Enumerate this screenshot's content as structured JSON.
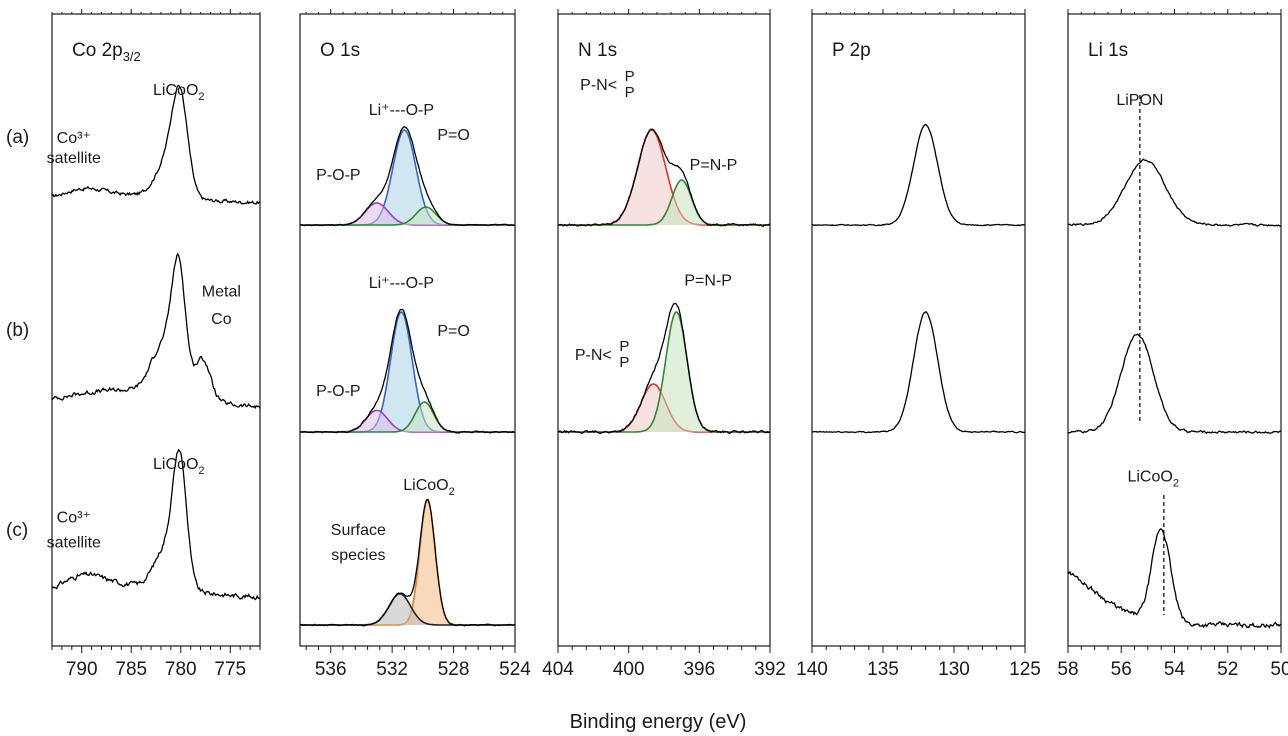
{
  "figure": {
    "xlabel": "Binding energy (eV)",
    "row_labels": [
      "(a)",
      "(b)",
      "(c)"
    ]
  },
  "colors": {
    "frame": "#1a1a1a",
    "envelope": "#000000",
    "red_line": "#e03030",
    "red_fill": "#f0c8c8",
    "green_line": "#2e8b2e",
    "green_fill": "#c8e3c0",
    "blue_line": "#3366cc",
    "blue_fill": "#a9d3e8",
    "purple_line": "#a040c0",
    "purple_fill": "#dcc0e8",
    "orange_line": "#e08020",
    "orange_fill": "#f3b985",
    "gray_line": "#222222",
    "gray_fill": "#b8b8b8"
  },
  "chart_data": [
    {
      "id": "co2p",
      "type": "line",
      "title_main": "Co 2p",
      "title_sub": "3/2",
      "xlim": [
        793,
        772
      ],
      "ticks": [
        790,
        785,
        780,
        775
      ],
      "tick_labels": [
        "790",
        "785",
        "780",
        "775"
      ],
      "rows": [
        {
          "label": "(a)",
          "baseline": 0.22,
          "noise": 0.015,
          "series": [
            {
              "name": "envelope",
              "center": 780.1,
              "height": 1.0,
              "width": 0.8
            },
            {
              "name": "shoulder",
              "center": 781.6,
              "height": 0.3,
              "width": 1.1
            },
            {
              "name": "satellite",
              "center": 789.8,
              "height": 0.08,
              "width": 2.0
            },
            {
              "name": "bg",
              "center": 786,
              "height": 0.08,
              "width": 6.0
            }
          ]
        },
        {
          "label": "(b)",
          "baseline": 0.2,
          "noise": 0.015,
          "series": [
            {
              "name": "envelope",
              "center": 780.2,
              "height": 1.0,
              "width": 0.7
            },
            {
              "name": "shoulder",
              "center": 781.8,
              "height": 0.4,
              "width": 1.2
            },
            {
              "name": "metal",
              "center": 777.8,
              "height": 0.35,
              "width": 0.8
            },
            {
              "name": "bg",
              "center": 786,
              "height": 0.15,
              "width": 6.0
            }
          ]
        },
        {
          "label": "(c)",
          "baseline": 0.22,
          "noise": 0.015,
          "series": [
            {
              "name": "envelope",
              "center": 780.1,
              "height": 1.0,
              "width": 0.7
            },
            {
              "name": "shoulder",
              "center": 781.6,
              "height": 0.3,
              "width": 1.1
            },
            {
              "name": "satellite",
              "center": 789.8,
              "height": 0.1,
              "width": 2.0
            },
            {
              "name": "bg",
              "center": 786,
              "height": 0.1,
              "width": 6.0
            }
          ]
        }
      ],
      "annotations": [
        {
          "row": 0,
          "text": "Co³⁺",
          "x": 790.8,
          "y": 0.82
        },
        {
          "row": 0,
          "text": "satellite",
          "x": 790.8,
          "y": 0.62
        },
        {
          "row": 0,
          "text": "LiCoO",
          "sub": "2",
          "x": 780.2,
          "y": 1.3
        },
        {
          "row": 1,
          "text": "Metal",
          "x": 775.9,
          "y": 1.13
        },
        {
          "row": 1,
          "text": "Co",
          "x": 775.9,
          "y": 0.9
        },
        {
          "row": 2,
          "text": "Co³⁺",
          "x": 790.8,
          "y": 0.82
        },
        {
          "row": 2,
          "text": "satellite",
          "x": 790.8,
          "y": 0.62
        },
        {
          "row": 2,
          "text": "LiCoO",
          "sub": "2",
          "x": 780.2,
          "y": 1.25
        }
      ]
    },
    {
      "id": "o1s",
      "type": "line",
      "title_main": "O 1s",
      "title_sub": "",
      "xlim": [
        538,
        524
      ],
      "ticks": [
        536,
        532,
        528,
        524
      ],
      "tick_labels": [
        "536",
        "532",
        "528",
        "524"
      ],
      "rows": [
        {
          "label": "(a)",
          "baseline": 0.0,
          "noise": 0.005,
          "series": [
            {
              "name": "Li+---O-P",
              "center": 531.2,
              "height": 0.95,
              "width": 0.75,
              "color": "blue"
            },
            {
              "name": "P-O-P",
              "center": 533.0,
              "height": 0.22,
              "width": 0.75,
              "color": "purple"
            },
            {
              "name": "P=O",
              "center": 529.8,
              "height": 0.18,
              "width": 0.65,
              "color": "green"
            }
          ]
        },
        {
          "label": "(b)",
          "baseline": 0.0,
          "noise": 0.005,
          "series": [
            {
              "name": "Li+---O-P",
              "center": 531.4,
              "height": 1.0,
              "width": 0.7,
              "color": "blue"
            },
            {
              "name": "P-O-P",
              "center": 533.0,
              "height": 0.18,
              "width": 0.7,
              "color": "purple"
            },
            {
              "name": "P=O",
              "center": 529.9,
              "height": 0.25,
              "width": 0.6,
              "color": "green"
            }
          ]
        },
        {
          "label": "(c)",
          "baseline": 0.0,
          "noise": 0.004,
          "series": [
            {
              "name": "LiCoO2",
              "center": 529.7,
              "height": 1.0,
              "width": 0.5,
              "color": "orange"
            },
            {
              "name": "Surface species",
              "center": 531.5,
              "height": 0.25,
              "width": 0.7,
              "color": "gray"
            }
          ]
        }
      ],
      "annotations": [
        {
          "row": 0,
          "text": "Li⁺---O-P",
          "x": 531.4,
          "y": 1.1
        },
        {
          "row": 0,
          "text": "P-O-P",
          "x": 535.5,
          "y": 0.45
        },
        {
          "row": 0,
          "text": "P=O",
          "x": 528.0,
          "y": 0.85
        },
        {
          "row": 1,
          "text": "Li⁺---O-P",
          "x": 531.4,
          "y": 1.2
        },
        {
          "row": 1,
          "text": "P-O-P",
          "x": 535.5,
          "y": 0.3
        },
        {
          "row": 1,
          "text": "P=O",
          "x": 528.0,
          "y": 0.8
        },
        {
          "row": 2,
          "text": "Surface",
          "x": 534.2,
          "y": 0.72
        },
        {
          "row": 2,
          "text": "species",
          "x": 534.2,
          "y": 0.52
        },
        {
          "row": 2,
          "text": "LiCoO",
          "sub": "2",
          "x": 529.6,
          "y": 1.08
        }
      ]
    },
    {
      "id": "n1s",
      "type": "line",
      "title_main": "N 1s",
      "title_sub": "",
      "xlim": [
        404,
        392
      ],
      "ticks": [
        404,
        400,
        396,
        392
      ],
      "tick_labels": [
        "404",
        "400",
        "396",
        "392"
      ],
      "rows": [
        {
          "label": "(a)",
          "baseline": 0.0,
          "noise": 0.008,
          "series": [
            {
              "name": "P-N<P,P",
              "center": 398.7,
              "height": 0.95,
              "width": 0.8,
              "color": "red"
            },
            {
              "name": "P=N-P",
              "center": 397.0,
              "height": 0.45,
              "width": 0.55,
              "color": "green"
            }
          ]
        },
        {
          "label": "(b)",
          "baseline": 0.0,
          "noise": 0.008,
          "series": [
            {
              "name": "P-N<P,P",
              "center": 398.6,
              "height": 0.4,
              "width": 0.7,
              "color": "red"
            },
            {
              "name": "P=N-P",
              "center": 397.3,
              "height": 1.0,
              "width": 0.6,
              "color": "green"
            }
          ]
        }
      ],
      "annotations": [
        {
          "row": 0,
          "text": "P-N<",
          "x": 401.7,
          "y": 1.35,
          "branch": true
        },
        {
          "row": 0,
          "text": "P=N-P",
          "x": 395.2,
          "y": 0.55
        },
        {
          "row": 1,
          "text": "P-N<",
          "x": 402.0,
          "y": 0.6,
          "branch": true
        },
        {
          "row": 1,
          "text": "P=N-P",
          "x": 395.5,
          "y": 1.22
        }
      ]
    },
    {
      "id": "p2p",
      "type": "line",
      "title_main": "P 2p",
      "title_sub": "",
      "xlim": [
        140,
        125
      ],
      "ticks": [
        140,
        135,
        130,
        125
      ],
      "tick_labels": [
        "140",
        "135",
        "130",
        "125"
      ],
      "rows": [
        {
          "label": "(a)",
          "baseline": 0.0,
          "noise": 0.004,
          "series": [
            {
              "name": "P 2p",
              "center": 132.0,
              "height": 1.0,
              "width": 0.85
            }
          ]
        },
        {
          "label": "(b)",
          "baseline": 0.0,
          "noise": 0.004,
          "series": [
            {
              "name": "P 2p",
              "center": 132.0,
              "height": 1.0,
              "width": 0.85
            }
          ]
        }
      ],
      "annotations": []
    },
    {
      "id": "li1s",
      "type": "line",
      "title_main": "Li 1s",
      "title_sub": "",
      "xlim": [
        58,
        50
      ],
      "ticks": [
        58,
        56,
        54,
        52,
        50
      ],
      "tick_labels": [
        "58",
        "56",
        "54",
        "52",
        "50"
      ],
      "rows": [
        {
          "label": "(a)",
          "baseline": 0.0,
          "noise": 0.008,
          "series": [
            {
              "name": "LiPON",
              "center": 55.1,
              "height": 0.65,
              "width": 0.75
            }
          ]
        },
        {
          "label": "(b)",
          "baseline": 0.0,
          "noise": 0.008,
          "series": [
            {
              "name": "LiPON",
              "center": 55.4,
              "height": 0.82,
              "width": 0.6
            }
          ]
        },
        {
          "label": "(c)",
          "baseline": 0.0,
          "noise": 0.015,
          "series": [
            {
              "name": "LiCoO2",
              "center": 54.5,
              "height": 0.75,
              "width": 0.35
            },
            {
              "name": "tail",
              "center": 59,
              "height": 0.5,
              "width": 1.8
            }
          ]
        }
      ],
      "vlines": [
        {
          "x": 55.3,
          "from_row": 0,
          "to_row": 1
        },
        {
          "x": 54.4,
          "from_row": 2,
          "to_row": 2
        }
      ],
      "annotations": [
        {
          "row": 0,
          "text": "LiPON",
          "x": 55.3,
          "y": 1.2
        },
        {
          "row": 2,
          "text": "LiCoO",
          "sub": "2",
          "x": 54.8,
          "y": 1.15
        }
      ]
    }
  ]
}
